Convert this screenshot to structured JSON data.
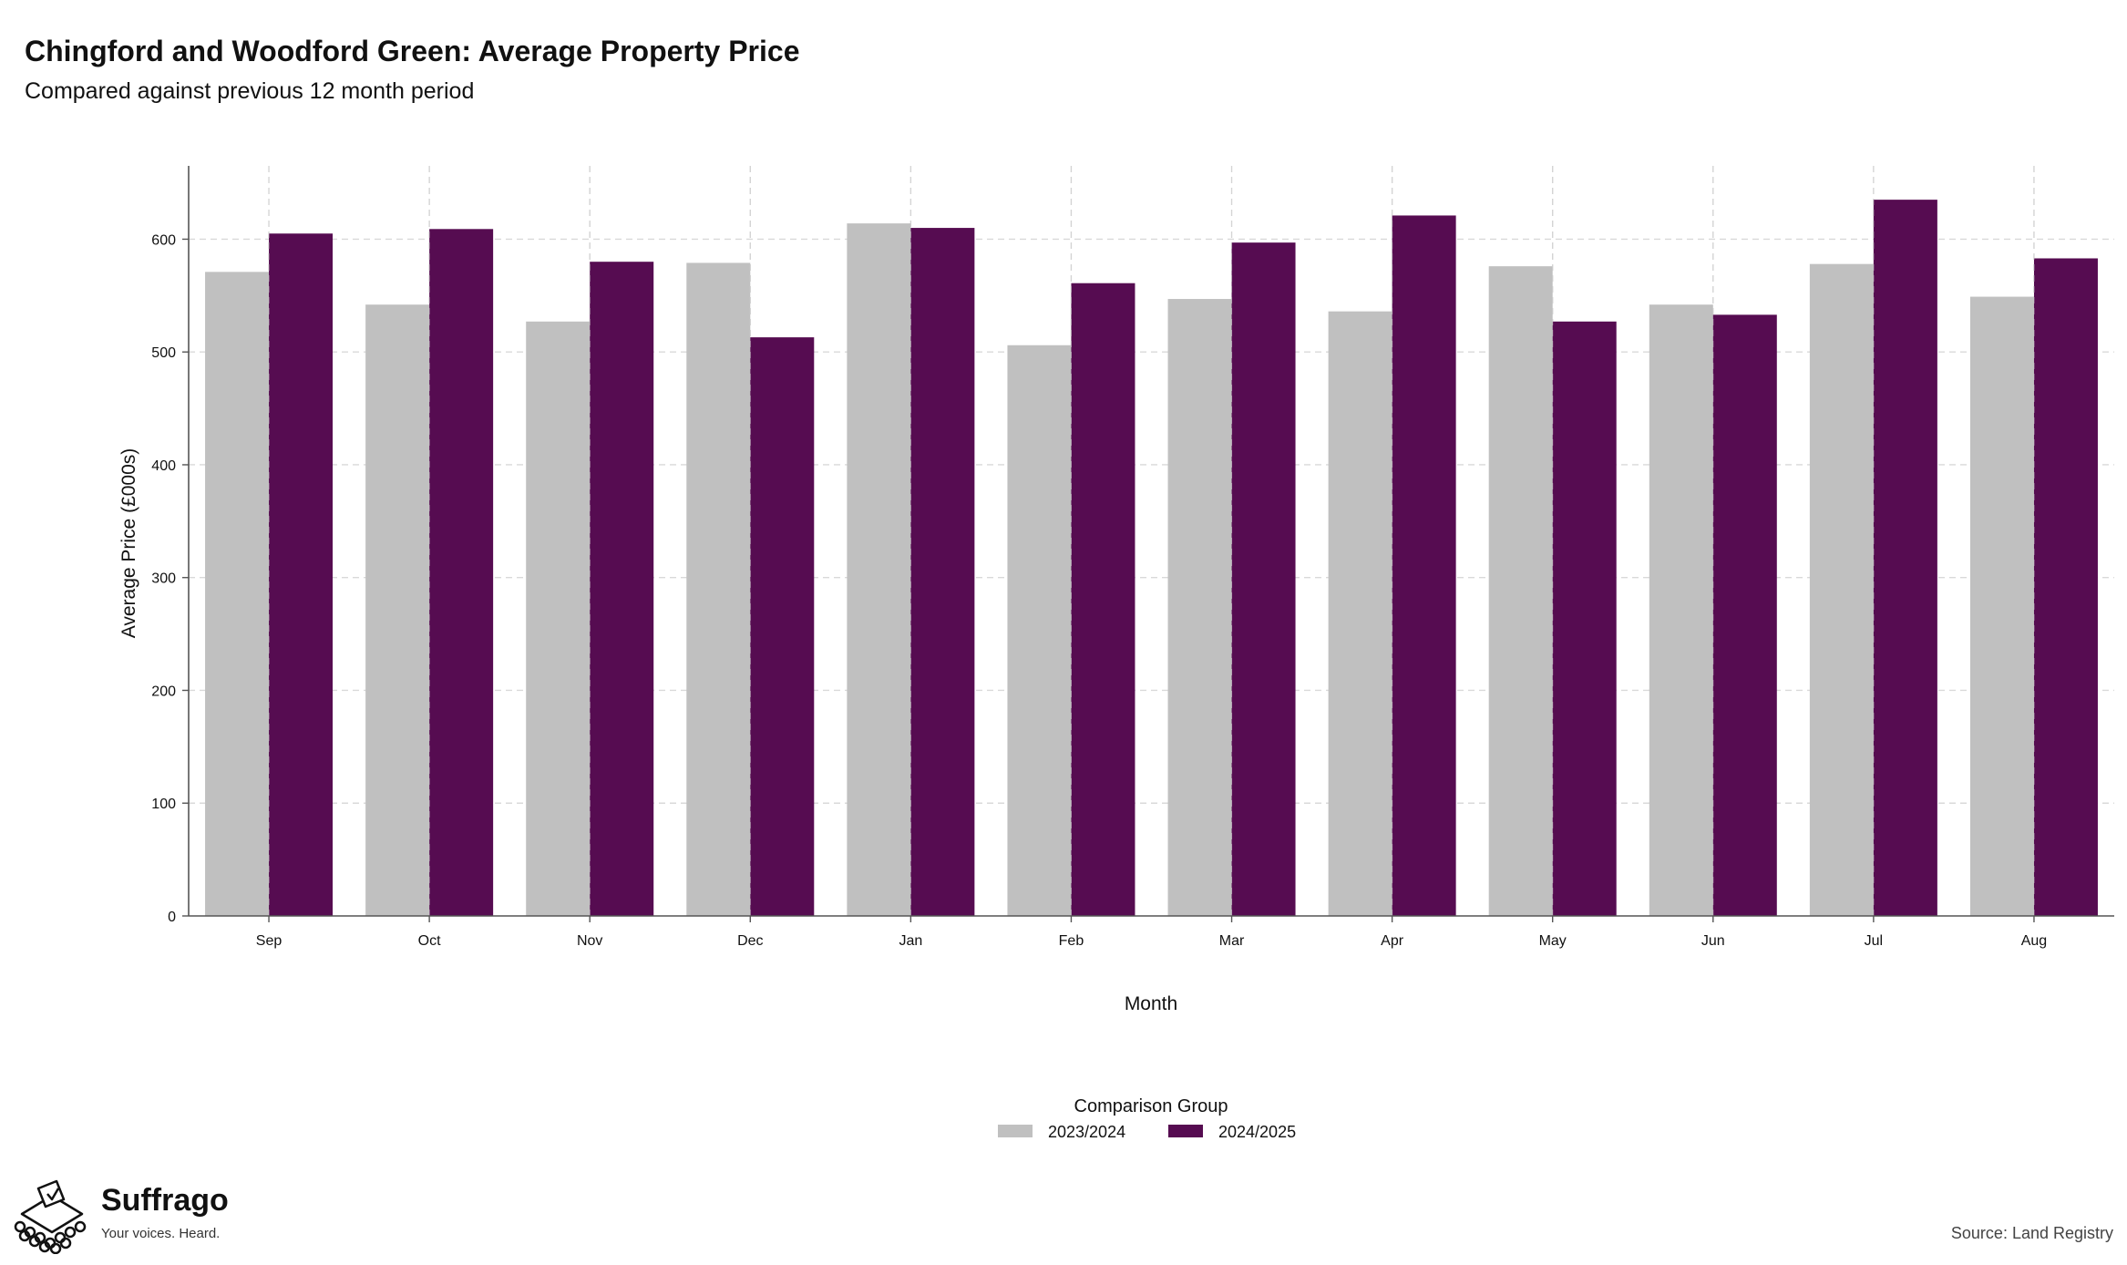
{
  "header": {
    "title": "Chingford and Woodford Green: Average Property Price",
    "subtitle": "Compared against previous 12 month period"
  },
  "chart_data": {
    "type": "bar",
    "title": "Chingford and Woodford Green: Average Property Price",
    "subtitle": "Compared against previous 12 month period",
    "xlabel": "Month",
    "ylabel": "Average Price (£000s)",
    "categories": [
      "Sep",
      "Oct",
      "Nov",
      "Dec",
      "Jan",
      "Feb",
      "Mar",
      "Apr",
      "May",
      "Jun",
      "Jul",
      "Aug"
    ],
    "series": [
      {
        "name": "2023/2024",
        "color": "#c0c0c0",
        "values": [
          571,
          542,
          527,
          579,
          614,
          506,
          547,
          536,
          576,
          542,
          578,
          549
        ]
      },
      {
        "name": "2024/2025",
        "color": "#560c51",
        "values": [
          605,
          609,
          580,
          513,
          610,
          561,
          597,
          621,
          527,
          533,
          635,
          583
        ]
      }
    ],
    "ylim": [
      0,
      665
    ],
    "yticks": [
      0,
      100,
      200,
      300,
      400,
      500,
      600
    ],
    "grid": true,
    "legend": {
      "title": "Comparison Group",
      "position": "bottom"
    }
  },
  "footer": {
    "brand_name": "Suffrago",
    "brand_tagline": "Your voices. Heard.",
    "source": "Source: Land Registry",
    "logo_icon": "ballot-box-icon"
  }
}
